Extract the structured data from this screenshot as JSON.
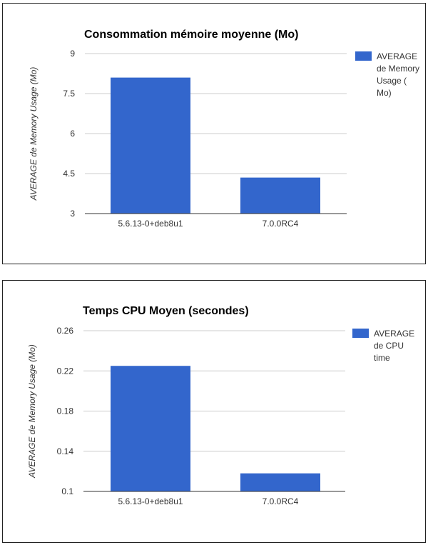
{
  "chart_data": [
    {
      "type": "bar",
      "title": "Consommation mémoire moyenne (Mo)",
      "ylabel": "AVERAGE de Memory Usage (Mo)",
      "xlabel": "",
      "categories": [
        "5.6.13-0+deb8u1",
        "7.0.0RC4"
      ],
      "series": [
        {
          "name": "AVERAGE de Memory Usage ( Mo)",
          "legend_lines": [
            "AVERAGE",
            "de Memory",
            "Usage (",
            "Mo)"
          ],
          "values": [
            8.1,
            4.35
          ],
          "color": "#3366cc"
        }
      ],
      "ylim": [
        3,
        9
      ],
      "yticks": [
        "3",
        "4.5",
        "6",
        "7.5",
        "9"
      ],
      "ytick_values": [
        3,
        4.5,
        6,
        7.5,
        9
      ],
      "grid": true,
      "legend": "right"
    },
    {
      "type": "bar",
      "title": "Temps CPU Moyen (secondes)",
      "ylabel": "AVERAGE de Memory Usage (Mo)",
      "xlabel": "",
      "categories": [
        "5.6.13-0+deb8u1",
        "7.0.0RC4"
      ],
      "series": [
        {
          "name": "AVERAGE de CPU time",
          "legend_lines": [
            "AVERAGE",
            "de CPU",
            "time"
          ],
          "values": [
            0.225,
            0.118
          ],
          "color": "#3366cc"
        }
      ],
      "ylim": [
        0.1,
        0.26
      ],
      "yticks": [
        "0.1",
        "0.14",
        "0.18",
        "0.22",
        "0.26"
      ],
      "ytick_values": [
        0.1,
        0.14,
        0.18,
        0.22,
        0.26
      ],
      "grid": true,
      "legend": "right"
    }
  ]
}
